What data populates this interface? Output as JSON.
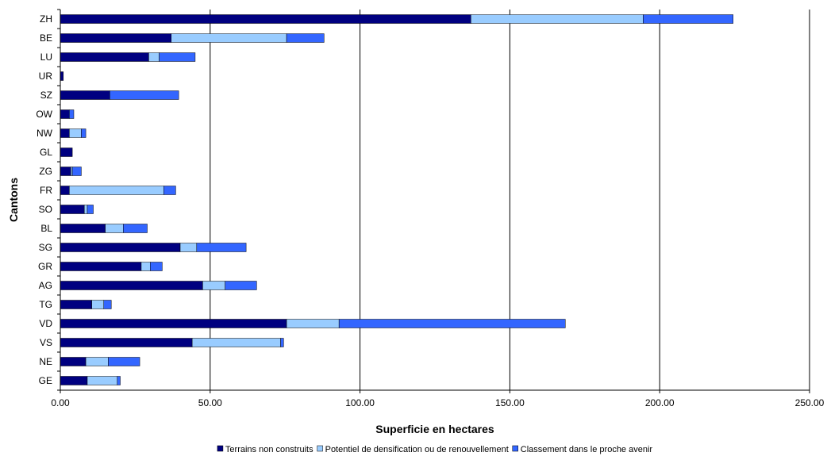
{
  "chart_data": {
    "type": "bar",
    "orientation": "horizontal",
    "stacked": true,
    "xlabel": "Superficie en hectares",
    "ylabel": "Cantons",
    "xlim": [
      0,
      250
    ],
    "xticks": [
      "0.00",
      "50.00",
      "100.00",
      "150.00",
      "200.00",
      "250.00"
    ],
    "xtick_values": [
      0,
      50,
      100,
      150,
      200,
      250
    ],
    "grid": "vertical major gridlines",
    "legend_position": "bottom",
    "categories": [
      "ZH",
      "BE",
      "LU",
      "UR",
      "SZ",
      "OW",
      "NW",
      "GL",
      "ZG",
      "FR",
      "SO",
      "BL",
      "SG",
      "GR",
      "AG",
      "TG",
      "VD",
      "VS",
      "NE",
      "GE"
    ],
    "series": [
      {
        "name": "Terrains non construits",
        "color": "#000080",
        "values": [
          137.0,
          37.0,
          29.5,
          1.0,
          16.5,
          3.0,
          3.0,
          4.0,
          3.5,
          3.0,
          8.0,
          15.0,
          40.0,
          27.0,
          47.5,
          10.5,
          75.5,
          44.0,
          8.5,
          9.0
        ]
      },
      {
        "name": "Potentiel de densification ou de renouvellement",
        "color": "#99CCFF",
        "values": [
          57.5,
          38.5,
          3.5,
          0.0,
          0.0,
          0.0,
          4.0,
          0.0,
          0.5,
          31.5,
          1.0,
          6.0,
          5.5,
          3.0,
          7.5,
          4.0,
          17.5,
          29.5,
          7.5,
          10.0
        ]
      },
      {
        "name": "Classement dans le proche avenir",
        "color": "#3366FF",
        "values": [
          30.0,
          12.5,
          12.0,
          0.0,
          23.0,
          1.5,
          1.5,
          0.0,
          3.0,
          4.0,
          2.0,
          8.0,
          16.5,
          4.0,
          10.5,
          2.5,
          75.5,
          1.0,
          10.5,
          1.0
        ]
      }
    ]
  }
}
